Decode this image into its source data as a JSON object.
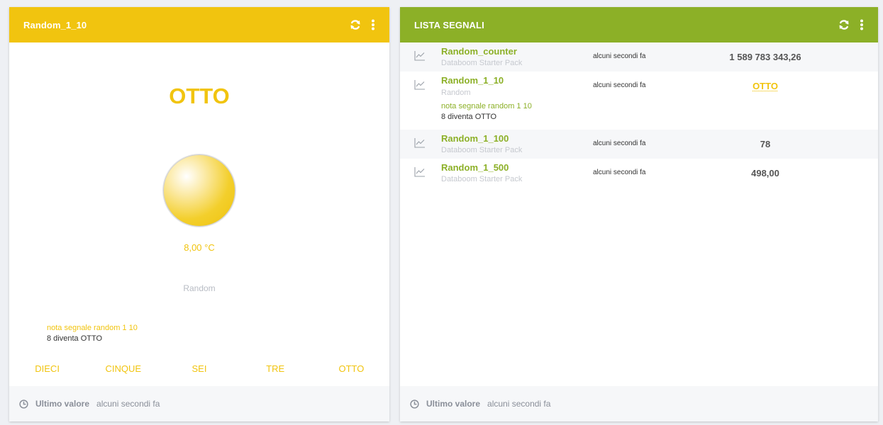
{
  "left_panel": {
    "title": "Random_1_10",
    "header_color": "#f1c40f",
    "current_value": "OTTO",
    "temperature": "8,00 °C",
    "source": "Random",
    "note_title": "nota segnale random 1 10",
    "note_body": "8 diventa OTTO",
    "choices": [
      "DIECI",
      "CINQUE",
      "SEI",
      "TRE",
      "OTTO"
    ],
    "footer_label": "Ultimo valore",
    "footer_time": "alcuni secondi fa",
    "icons": [
      "refresh-icon",
      "more-vertical-icon",
      "clock-icon"
    ]
  },
  "right_panel": {
    "title": "LISTA SEGNALI",
    "header_color": "#8cb027",
    "signals": [
      {
        "name": "Random_counter",
        "subtitle": "Databoom Starter Pack",
        "time": "alcuni secondi fa",
        "value": "1 589 783 343,26"
      },
      {
        "name": "Random_1_10",
        "subtitle": "Random",
        "note_title": "nota segnale random 1 10",
        "note_body": "8 diventa OTTO",
        "time": "alcuni secondi fa",
        "value": "OTTO"
      },
      {
        "name": "Random_1_100",
        "subtitle": "Databoom Starter Pack",
        "time": "alcuni secondi fa",
        "value": "78"
      },
      {
        "name": "Random_1_500",
        "subtitle": "Databoom Starter Pack",
        "time": "alcuni secondi fa",
        "value": "498,00"
      }
    ],
    "footer_label": "Ultimo valore",
    "footer_time": "alcuni secondi fa",
    "icons": [
      "refresh-icon",
      "more-vertical-icon",
      "chart-line-icon",
      "clock-icon"
    ]
  }
}
